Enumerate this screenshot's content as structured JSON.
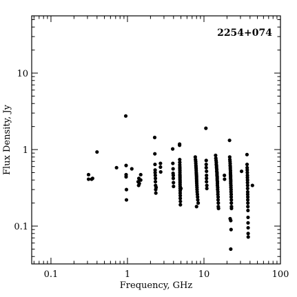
{
  "chart_data": {
    "type": "scatter",
    "title": "",
    "annotation": "2254+074",
    "xlabel": "Frequency, GHz",
    "ylabel": "Flux Density, Jy",
    "x_scale": "log",
    "y_scale": "log",
    "xlim": [
      0.056,
      100
    ],
    "ylim": [
      0.032,
      56
    ],
    "grid": false,
    "x_ticks": [
      {
        "value": 0.1,
        "label": "0.1"
      },
      {
        "value": 1,
        "label": "1"
      },
      {
        "value": 10,
        "label": "10"
      },
      {
        "value": 100,
        "label": "100"
      }
    ],
    "y_ticks": [
      {
        "value": 0.1,
        "label": "0.1"
      },
      {
        "value": 1,
        "label": "1"
      },
      {
        "value": 10,
        "label": "10"
      }
    ],
    "color": "#000000",
    "points": [
      [
        0.31,
        0.47
      ],
      [
        0.31,
        0.41
      ],
      [
        0.34,
        0.41
      ],
      [
        0.35,
        0.42
      ],
      [
        0.4,
        0.93
      ],
      [
        0.72,
        0.58
      ],
      [
        0.95,
        2.75
      ],
      [
        0.96,
        0.62
      ],
      [
        0.96,
        0.47
      ],
      [
        0.96,
        0.44
      ],
      [
        0.97,
        0.3
      ],
      [
        0.97,
        0.22
      ],
      [
        1.14,
        0.56
      ],
      [
        1.38,
        0.38
      ],
      [
        1.4,
        0.34
      ],
      [
        1.41,
        0.42
      ],
      [
        1.43,
        0.36
      ],
      [
        1.49,
        0.47
      ],
      [
        1.49,
        0.4
      ],
      [
        2.27,
        1.44
      ],
      [
        2.28,
        0.88
      ],
      [
        2.29,
        0.64
      ],
      [
        2.3,
        0.54
      ],
      [
        2.3,
        0.5
      ],
      [
        2.31,
        0.46
      ],
      [
        2.32,
        0.42
      ],
      [
        2.32,
        0.38
      ],
      [
        2.33,
        0.34
      ],
      [
        2.34,
        0.3
      ],
      [
        2.35,
        0.27
      ],
      [
        2.37,
        0.32
      ],
      [
        2.7,
        0.66
      ],
      [
        2.7,
        0.59
      ],
      [
        2.72,
        0.51
      ],
      [
        3.9,
        1.02
      ],
      [
        3.92,
        0.66
      ],
      [
        3.95,
        0.56
      ],
      [
        3.95,
        0.49
      ],
      [
        3.97,
        0.46
      ],
      [
        3.97,
        0.42
      ],
      [
        3.99,
        0.37
      ],
      [
        4.0,
        0.33
      ],
      [
        4.8,
        1.18
      ],
      [
        4.8,
        1.14
      ],
      [
        4.82,
        0.74
      ],
      [
        4.83,
        0.68
      ],
      [
        4.83,
        0.63
      ],
      [
        4.84,
        0.59
      ],
      [
        4.84,
        0.56
      ],
      [
        4.85,
        0.53
      ],
      [
        4.85,
        0.5
      ],
      [
        4.85,
        0.47
      ],
      [
        4.86,
        0.45
      ],
      [
        4.86,
        0.43
      ],
      [
        4.86,
        0.41
      ],
      [
        4.87,
        0.39
      ],
      [
        4.87,
        0.37
      ],
      [
        4.87,
        0.35
      ],
      [
        4.88,
        0.33
      ],
      [
        4.88,
        0.31
      ],
      [
        4.89,
        0.29
      ],
      [
        4.89,
        0.27
      ],
      [
        4.9,
        0.25
      ],
      [
        4.9,
        0.23
      ],
      [
        4.92,
        0.21
      ],
      [
        4.92,
        0.19
      ],
      [
        5.0,
        0.31
      ],
      [
        7.7,
        0.8
      ],
      [
        7.75,
        0.74
      ],
      [
        7.8,
        0.7
      ],
      [
        7.82,
        0.66
      ],
      [
        7.85,
        0.62
      ],
      [
        7.87,
        0.59
      ],
      [
        7.9,
        0.56
      ],
      [
        7.92,
        0.53
      ],
      [
        7.94,
        0.5
      ],
      [
        7.96,
        0.48
      ],
      [
        7.98,
        0.46
      ],
      [
        8.0,
        0.44
      ],
      [
        8.0,
        0.42
      ],
      [
        8.02,
        0.4
      ],
      [
        8.03,
        0.38
      ],
      [
        8.05,
        0.36
      ],
      [
        8.07,
        0.34
      ],
      [
        8.1,
        0.32
      ],
      [
        8.12,
        0.3
      ],
      [
        8.15,
        0.28
      ],
      [
        8.2,
        0.26
      ],
      [
        8.25,
        0.24
      ],
      [
        8.3,
        0.22
      ],
      [
        8.4,
        0.2
      ],
      [
        8.0,
        0.18
      ],
      [
        10.6,
        1.9
      ],
      [
        10.7,
        0.72
      ],
      [
        10.7,
        0.64
      ],
      [
        10.7,
        0.58
      ],
      [
        10.8,
        0.52
      ],
      [
        10.8,
        0.46
      ],
      [
        10.8,
        0.42
      ],
      [
        10.8,
        0.38
      ],
      [
        10.9,
        0.34
      ],
      [
        10.9,
        0.31
      ],
      [
        14.2,
        0.84
      ],
      [
        14.3,
        0.77
      ],
      [
        14.4,
        0.72
      ],
      [
        14.5,
        0.68
      ],
      [
        14.5,
        0.64
      ],
      [
        14.6,
        0.61
      ],
      [
        14.6,
        0.58
      ],
      [
        14.7,
        0.55
      ],
      [
        14.7,
        0.52
      ],
      [
        14.8,
        0.5
      ],
      [
        14.8,
        0.48
      ],
      [
        14.8,
        0.46
      ],
      [
        14.9,
        0.44
      ],
      [
        14.9,
        0.42
      ],
      [
        14.9,
        0.4
      ],
      [
        15.0,
        0.38
      ],
      [
        15.0,
        0.36
      ],
      [
        15.0,
        0.34
      ],
      [
        15.1,
        0.32
      ],
      [
        15.1,
        0.3
      ],
      [
        15.2,
        0.28
      ],
      [
        15.2,
        0.26
      ],
      [
        15.3,
        0.24
      ],
      [
        15.3,
        0.22
      ],
      [
        15.4,
        0.2
      ],
      [
        15.4,
        0.18
      ],
      [
        15.5,
        0.17
      ],
      [
        18.5,
        0.46
      ],
      [
        18.6,
        0.41
      ],
      [
        21.6,
        1.32
      ],
      [
        21.7,
        0.8
      ],
      [
        21.8,
        0.74
      ],
      [
        21.9,
        0.7
      ],
      [
        22.0,
        0.66
      ],
      [
        22.0,
        0.62
      ],
      [
        22.1,
        0.59
      ],
      [
        22.1,
        0.56
      ],
      [
        22.2,
        0.53
      ],
      [
        22.2,
        0.5
      ],
      [
        22.2,
        0.48
      ],
      [
        22.3,
        0.46
      ],
      [
        22.3,
        0.44
      ],
      [
        22.3,
        0.42
      ],
      [
        22.4,
        0.4
      ],
      [
        22.4,
        0.38
      ],
      [
        22.4,
        0.36
      ],
      [
        22.5,
        0.34
      ],
      [
        22.5,
        0.32
      ],
      [
        22.6,
        0.3
      ],
      [
        22.6,
        0.28
      ],
      [
        22.7,
        0.26
      ],
      [
        22.7,
        0.24
      ],
      [
        22.8,
        0.22
      ],
      [
        22.8,
        0.2
      ],
      [
        22.9,
        0.18
      ],
      [
        22.9,
        0.17
      ],
      [
        22.0,
        0.125
      ],
      [
        22.4,
        0.118
      ],
      [
        22.6,
        0.09
      ],
      [
        22.4,
        0.05
      ],
      [
        31.0,
        0.52
      ],
      [
        36.5,
        0.86
      ],
      [
        36.6,
        0.64
      ],
      [
        36.7,
        0.58
      ],
      [
        36.8,
        0.54
      ],
      [
        36.9,
        0.5
      ],
      [
        37.0,
        0.46
      ],
      [
        37.0,
        0.43
      ],
      [
        37.1,
        0.4
      ],
      [
        37.1,
        0.37
      ],
      [
        37.2,
        0.34
      ],
      [
        37.2,
        0.31
      ],
      [
        37.3,
        0.28
      ],
      [
        37.3,
        0.26
      ],
      [
        37.4,
        0.24
      ],
      [
        37.4,
        0.22
      ],
      [
        37.5,
        0.2
      ],
      [
        37.5,
        0.18
      ],
      [
        37.6,
        0.16
      ],
      [
        37.7,
        0.13
      ],
      [
        37.7,
        0.11
      ],
      [
        37.8,
        0.095
      ],
      [
        37.8,
        0.08
      ],
      [
        37.9,
        0.072
      ],
      [
        43.0,
        0.34
      ]
    ]
  }
}
